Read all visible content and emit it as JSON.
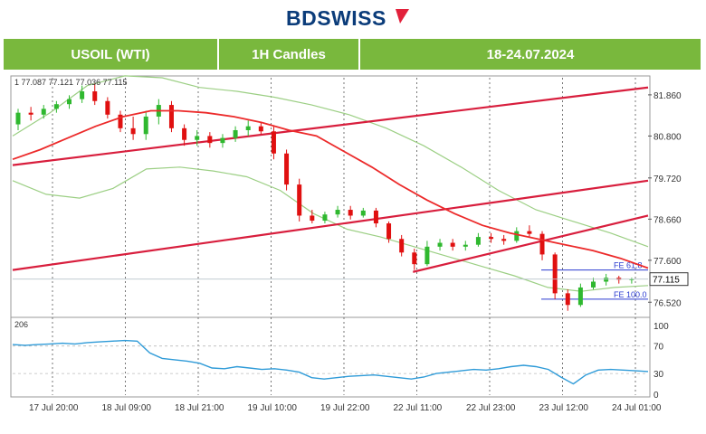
{
  "brand": {
    "text": "BDSWISS",
    "color": "#0b3c7a",
    "accent": "#e2213b"
  },
  "header": {
    "symbol": "USOIL (WTI)",
    "timeframe": "1H Candles",
    "dates": "18-24.07.2024",
    "bg": "#79b83d"
  },
  "ohlc_text": "1  77.087 77.121 77.036 77.115",
  "osc_label": "206",
  "chart_data": {
    "type": "candlestick",
    "y_ticks": [
      "81.860",
      "80.800",
      "79.720",
      "78.660",
      "77.600",
      "76.520"
    ],
    "ylim": [
      76.2,
      82.3
    ],
    "last_price": "77.115",
    "x_ticks": [
      "17 Jul 20:00",
      "18 Jul 09:00",
      "18 Jul 21:00",
      "19 Jul 10:00",
      "19 Jul 22:00",
      "22 Jul 11:00",
      "22 Jul 23:00",
      "23 Jul 12:00",
      "24 Jul 01:00"
    ],
    "candles": [
      {
        "o": 81.1,
        "h": 81.5,
        "l": 80.95,
        "c": 81.4
      },
      {
        "o": 81.4,
        "h": 81.55,
        "l": 81.2,
        "c": 81.35
      },
      {
        "o": 81.35,
        "h": 81.6,
        "l": 81.25,
        "c": 81.5
      },
      {
        "o": 81.5,
        "h": 81.7,
        "l": 81.4,
        "c": 81.62
      },
      {
        "o": 81.62,
        "h": 81.85,
        "l": 81.5,
        "c": 81.75
      },
      {
        "o": 81.75,
        "h": 82.1,
        "l": 81.65,
        "c": 81.95
      },
      {
        "o": 81.95,
        "h": 82.15,
        "l": 81.6,
        "c": 81.7
      },
      {
        "o": 81.7,
        "h": 81.8,
        "l": 81.25,
        "c": 81.35
      },
      {
        "o": 81.35,
        "h": 81.45,
        "l": 80.9,
        "c": 81.0
      },
      {
        "o": 81.0,
        "h": 81.3,
        "l": 80.7,
        "c": 80.85
      },
      {
        "o": 80.85,
        "h": 81.45,
        "l": 80.7,
        "c": 81.3
      },
      {
        "o": 81.3,
        "h": 81.75,
        "l": 81.1,
        "c": 81.6
      },
      {
        "o": 81.6,
        "h": 81.7,
        "l": 80.9,
        "c": 81.0
      },
      {
        "o": 81.0,
        "h": 81.1,
        "l": 80.55,
        "c": 80.7
      },
      {
        "o": 80.7,
        "h": 80.95,
        "l": 80.55,
        "c": 80.8
      },
      {
        "o": 80.8,
        "h": 80.9,
        "l": 80.5,
        "c": 80.62
      },
      {
        "o": 80.62,
        "h": 80.85,
        "l": 80.5,
        "c": 80.75
      },
      {
        "o": 80.75,
        "h": 81.05,
        "l": 80.65,
        "c": 80.95
      },
      {
        "o": 80.95,
        "h": 81.2,
        "l": 80.8,
        "c": 81.05
      },
      {
        "o": 81.05,
        "h": 81.15,
        "l": 80.85,
        "c": 80.92
      },
      {
        "o": 80.92,
        "h": 81.05,
        "l": 80.2,
        "c": 80.35
      },
      {
        "o": 80.35,
        "h": 80.45,
        "l": 79.4,
        "c": 79.55
      },
      {
        "o": 79.55,
        "h": 79.7,
        "l": 78.6,
        "c": 78.75
      },
      {
        "o": 78.75,
        "h": 78.9,
        "l": 78.55,
        "c": 78.62
      },
      {
        "o": 78.62,
        "h": 78.85,
        "l": 78.55,
        "c": 78.78
      },
      {
        "o": 78.78,
        "h": 79.0,
        "l": 78.7,
        "c": 78.9
      },
      {
        "o": 78.9,
        "h": 79.0,
        "l": 78.65,
        "c": 78.75
      },
      {
        "o": 78.75,
        "h": 78.95,
        "l": 78.7,
        "c": 78.88
      },
      {
        "o": 78.88,
        "h": 78.95,
        "l": 78.45,
        "c": 78.55
      },
      {
        "o": 78.55,
        "h": 78.6,
        "l": 78.05,
        "c": 78.15
      },
      {
        "o": 78.15,
        "h": 78.25,
        "l": 77.7,
        "c": 77.8
      },
      {
        "o": 77.8,
        "h": 77.9,
        "l": 77.35,
        "c": 77.5
      },
      {
        "o": 77.5,
        "h": 78.1,
        "l": 77.45,
        "c": 77.95
      },
      {
        "o": 77.95,
        "h": 78.15,
        "l": 77.85,
        "c": 78.05
      },
      {
        "o": 78.05,
        "h": 78.15,
        "l": 77.85,
        "c": 77.95
      },
      {
        "o": 77.95,
        "h": 78.1,
        "l": 77.85,
        "c": 78.0
      },
      {
        "o": 78.0,
        "h": 78.3,
        "l": 77.95,
        "c": 78.2
      },
      {
        "o": 78.2,
        "h": 78.3,
        "l": 78.05,
        "c": 78.15
      },
      {
        "o": 78.15,
        "h": 78.25,
        "l": 78.0,
        "c": 78.1
      },
      {
        "o": 78.1,
        "h": 78.45,
        "l": 78.05,
        "c": 78.35
      },
      {
        "o": 78.35,
        "h": 78.5,
        "l": 78.2,
        "c": 78.28
      },
      {
        "o": 78.28,
        "h": 78.35,
        "l": 77.6,
        "c": 77.75
      },
      {
        "o": 77.75,
        "h": 77.8,
        "l": 76.6,
        "c": 76.75
      },
      {
        "o": 76.75,
        "h": 76.85,
        "l": 76.3,
        "c": 76.45
      },
      {
        "o": 76.45,
        "h": 77.0,
        "l": 76.4,
        "c": 76.9
      },
      {
        "o": 76.9,
        "h": 77.15,
        "l": 76.85,
        "c": 77.05
      },
      {
        "o": 77.05,
        "h": 77.25,
        "l": 76.95,
        "c": 77.15
      },
      {
        "o": 77.15,
        "h": 77.2,
        "l": 77.0,
        "c": 77.1
      },
      {
        "o": 77.1,
        "h": 77.15,
        "l": 77.0,
        "c": 77.115
      }
    ],
    "ma_red": [
      80.2,
      80.45,
      80.75,
      81.05,
      81.3,
      81.45,
      81.45,
      81.4,
      81.3,
      81.15,
      80.95,
      80.8,
      80.4,
      80.0,
      79.55,
      79.15,
      78.8,
      78.5,
      78.3,
      78.15,
      78.0,
      77.85,
      77.65,
      77.4
    ],
    "bb_upper": [
      80.8,
      81.4,
      82.1,
      82.35,
      82.3,
      82.05,
      81.95,
      81.8,
      81.6,
      81.35,
      81.0,
      80.55,
      80.0,
      79.4,
      78.9,
      78.6,
      78.3,
      77.95
    ],
    "bb_lower": [
      79.65,
      79.3,
      79.2,
      79.45,
      79.95,
      80.0,
      79.9,
      79.75,
      79.4,
      78.8,
      78.4,
      78.2,
      77.95,
      77.7,
      77.45,
      77.2,
      76.9,
      76.8,
      76.9,
      76.95
    ],
    "channels": [
      {
        "x1": 0.0,
        "y1": 80.05,
        "x2": 1.0,
        "y2": 82.05
      },
      {
        "x1": 0.0,
        "y1": 77.35,
        "x2": 1.0,
        "y2": 79.65
      },
      {
        "x1": 0.63,
        "y1": 77.3,
        "x2": 1.0,
        "y2": 78.75
      }
    ],
    "fib_levels": [
      {
        "label": "FE 61.8",
        "value": 77.35
      },
      {
        "label": "FE 100.0",
        "value": 76.6
      }
    ],
    "oscillator": {
      "levels": [
        "100",
        "70",
        "30",
        "0"
      ],
      "values": [
        72,
        71,
        72,
        73,
        74,
        73,
        75,
        76,
        77,
        78,
        77,
        60,
        52,
        50,
        48,
        45,
        38,
        37,
        40,
        38,
        36,
        37,
        35,
        32,
        24,
        22,
        24,
        26,
        27,
        28,
        26,
        24,
        22,
        25,
        30,
        32,
        34,
        36,
        35,
        37,
        40,
        42,
        40,
        36,
        25,
        15,
        28,
        35,
        36,
        35,
        34,
        33
      ]
    }
  }
}
